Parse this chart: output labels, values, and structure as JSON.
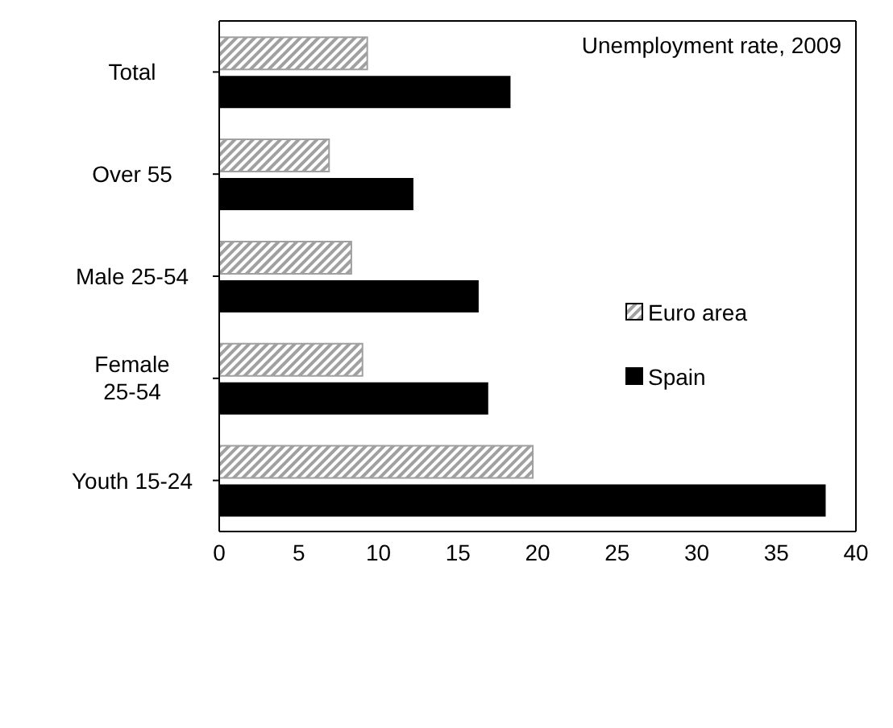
{
  "chart_data": {
    "type": "bar",
    "orientation": "horizontal",
    "title": "Unemployment rate, 2009",
    "categories": [
      "Total",
      "Over 55",
      "Male 25-54",
      "Female 25-54",
      "Youth 15-24"
    ],
    "series": [
      {
        "name": "Euro area",
        "color": "#a0a0a0",
        "values": [
          9.3,
          6.9,
          8.3,
          9.0,
          19.7
        ]
      },
      {
        "name": "Spain",
        "color": "#000000",
        "values": [
          18.3,
          12.2,
          16.3,
          16.9,
          38.1
        ]
      }
    ],
    "xlim": [
      0,
      40
    ],
    "xticks": [
      0,
      5,
      10,
      15,
      20,
      25,
      30,
      35,
      40
    ],
    "grid": false,
    "legend": "right"
  }
}
